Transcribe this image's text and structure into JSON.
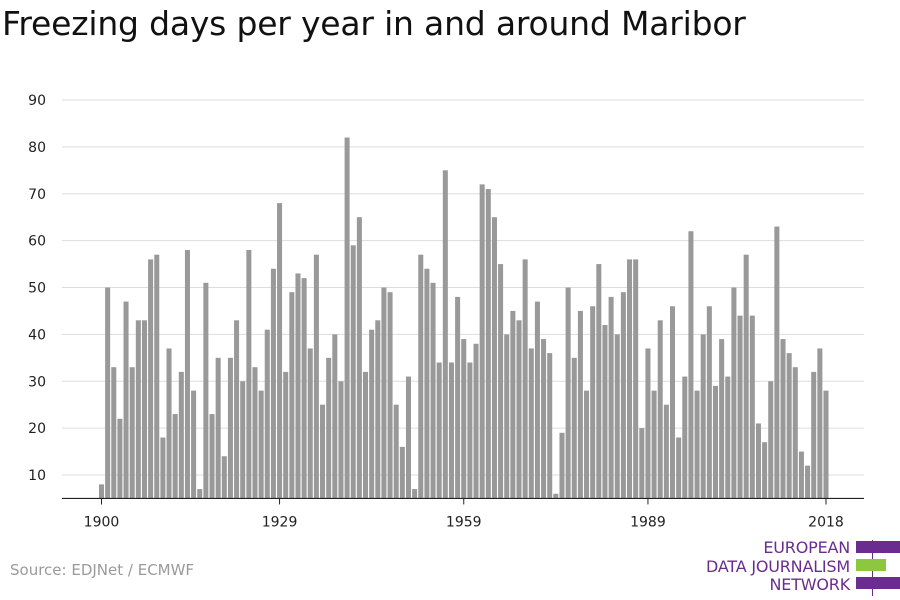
{
  "chart_data": {
    "type": "bar",
    "title": "Freezing days per year in and around Maribor",
    "xlabel": "",
    "ylabel": "",
    "x_start": 1900,
    "x_ticks": [
      1900,
      1929,
      1959,
      1989,
      2018
    ],
    "y_ticks": [
      10,
      20,
      30,
      40,
      50,
      60,
      70,
      80,
      90
    ],
    "ylim": [
      5,
      90
    ],
    "grid": true,
    "bar_color": "#999999",
    "values": [
      8,
      50,
      33,
      22,
      47,
      33,
      43,
      43,
      56,
      57,
      18,
      37,
      23,
      32,
      58,
      28,
      7,
      51,
      23,
      35,
      14,
      35,
      43,
      30,
      58,
      33,
      28,
      41,
      54,
      68,
      32,
      49,
      53,
      52,
      37,
      57,
      25,
      35,
      40,
      30,
      82,
      59,
      65,
      32,
      41,
      43,
      50,
      49,
      25,
      16,
      31,
      7,
      57,
      54,
      51,
      34,
      75,
      34,
      48,
      39,
      34,
      38,
      72,
      71,
      65,
      55,
      40,
      45,
      43,
      56,
      37,
      47,
      39,
      36,
      6,
      19,
      50,
      35,
      45,
      28,
      46,
      55,
      42,
      48,
      40,
      49,
      56,
      56,
      20,
      37,
      28,
      43,
      25,
      46,
      18,
      31,
      62,
      28,
      40,
      46,
      29,
      39,
      31,
      50,
      44,
      57,
      44,
      21,
      17,
      30,
      63,
      39,
      36,
      33,
      15,
      12,
      32,
      37,
      28
    ]
  },
  "source": "Source: EDJNet / ECMWF",
  "logo": {
    "lines": [
      "EUROPEAN",
      "DATA JOURNALISM",
      "NETWORK"
    ],
    "colors": [
      "#6a2d8f",
      "#8dc63f",
      "#6a2d8f"
    ]
  }
}
